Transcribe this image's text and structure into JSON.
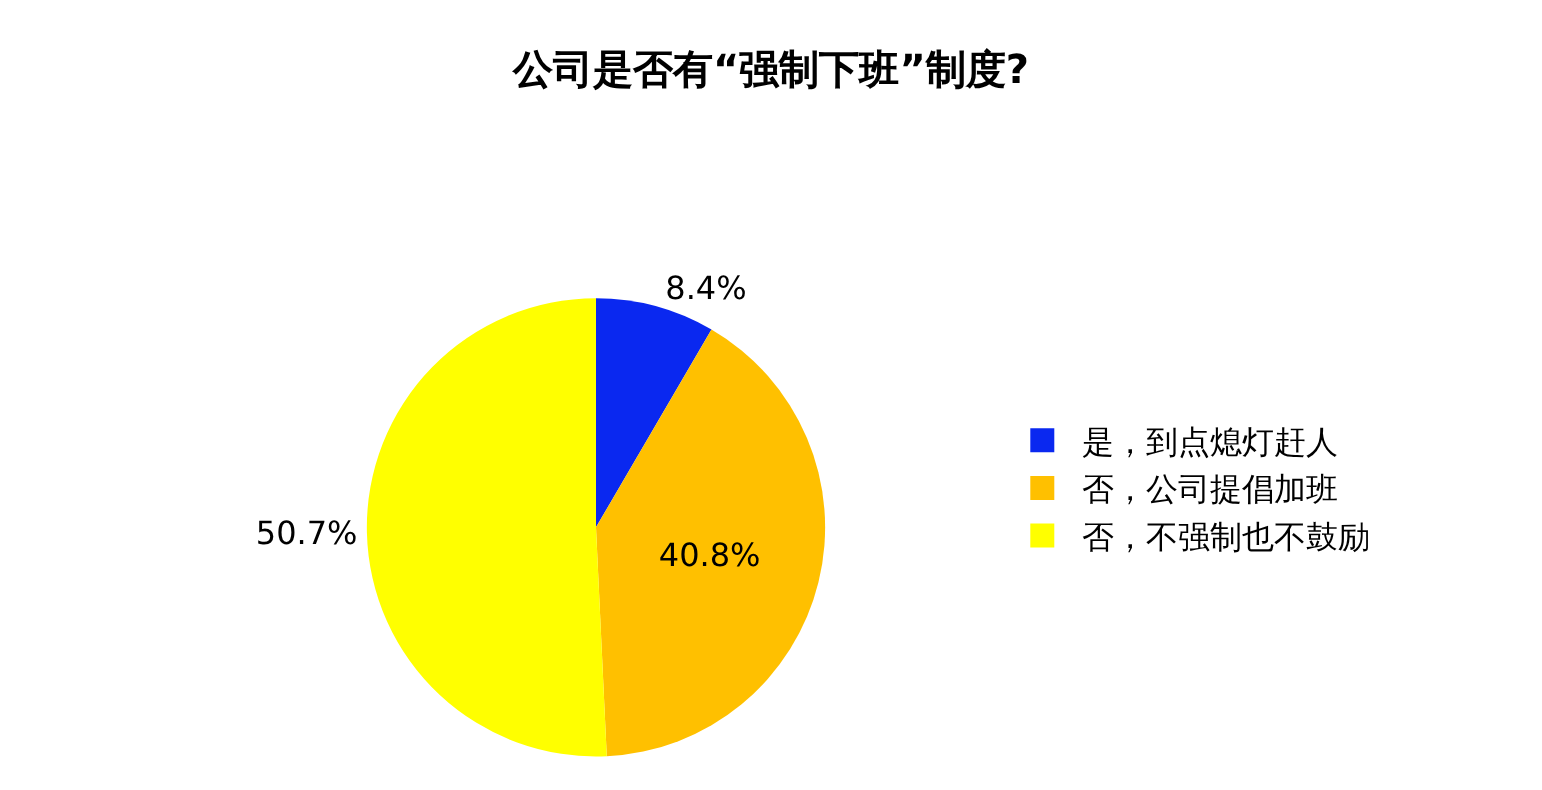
{
  "chart_data": {
    "type": "pie",
    "title": "公司是否有“强制下班”制度?",
    "categories": [
      "是，到点熄灯赶人",
      "否，公司提倡加班",
      "否，不强制也不鼓励"
    ],
    "values": [
      8.4,
      40.8,
      50.7
    ],
    "colors": [
      "#0a28f0",
      "#ffc000",
      "#ffff00"
    ],
    "value_labels": [
      "8.4%",
      "40.8%",
      "50.7%"
    ],
    "legend": "right"
  }
}
